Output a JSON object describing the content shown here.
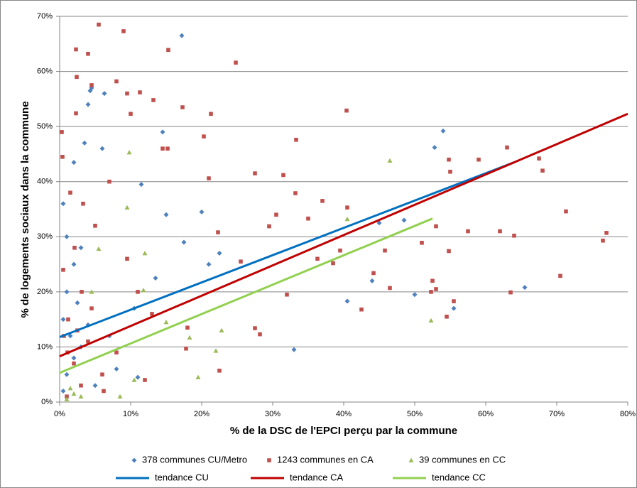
{
  "chart_data": {
    "type": "scatter",
    "x_label": "% de la DSC de l'EPCI perçu par la commune",
    "y_label": "% de logements sociaux dans la commune",
    "xlim": [
      0,
      80
    ],
    "ylim": [
      0,
      70
    ],
    "xticks": [
      {
        "value": 0,
        "label": "0%"
      },
      {
        "value": 10,
        "label": "10%"
      },
      {
        "value": 20,
        "label": "20%"
      },
      {
        "value": 30,
        "label": "30%"
      },
      {
        "value": 40,
        "label": "40%"
      },
      {
        "value": 50,
        "label": "50%"
      },
      {
        "value": 60,
        "label": "60%"
      },
      {
        "value": 70,
        "label": "70%"
      },
      {
        "value": 80,
        "label": "80%"
      }
    ],
    "yticks": [
      {
        "value": 0,
        "label": "0%"
      },
      {
        "value": 10,
        "label": "10%"
      },
      {
        "value": 20,
        "label": "20%"
      },
      {
        "value": 30,
        "label": "30%"
      },
      {
        "value": 40,
        "label": "40%"
      },
      {
        "value": 50,
        "label": "50%"
      },
      {
        "value": 60,
        "label": "60%"
      },
      {
        "value": 70,
        "label": "70%"
      }
    ],
    "grid": true,
    "legend": "bottom",
    "series": [
      {
        "name": "378 communes CU/Metro",
        "color": "#4f81bd",
        "marker": "diamond",
        "x": [
          17.2,
          4.5,
          4.3,
          6.3,
          4,
          14.5,
          54,
          52.8,
          6,
          3.5,
          2,
          11.5,
          20,
          15,
          0.5,
          45,
          48.5,
          22.5,
          17.5,
          1,
          3,
          2,
          21,
          13.5,
          44,
          40.5,
          50,
          65.5,
          55.5,
          33,
          10.5,
          1,
          0.5,
          1.5,
          3,
          2,
          1,
          5,
          8,
          0.5,
          11,
          4,
          7,
          2.5
        ],
        "values": [
          66.5,
          57,
          56.5,
          56,
          54,
          49,
          49.2,
          46.2,
          46,
          47,
          43.5,
          39.5,
          34.5,
          34,
          36,
          32.5,
          33,
          27,
          29,
          30,
          28,
          25,
          25,
          22.5,
          22,
          18.3,
          19.5,
          20.8,
          17,
          9.5,
          17,
          20,
          15,
          12,
          10,
          8,
          5,
          3,
          6,
          2,
          4.5,
          14,
          12,
          18
        ]
      },
      {
        "name": "1243 communes en CA",
        "color": "#c0504d",
        "marker": "square",
        "x": [
          5.5,
          9,
          2.3,
          4,
          15.3,
          24.8,
          2.4,
          8,
          4.5,
          11.3,
          9.5,
          13.2,
          17.3,
          40.4,
          21.3,
          2.3,
          10,
          0.3,
          20.3,
          33.3,
          14.5,
          15.2,
          59,
          63,
          67.5,
          68,
          55,
          54.8,
          27.5,
          31.5,
          21,
          37,
          40.5,
          33.2,
          71.3,
          29.5,
          30.5,
          35,
          53,
          57.5,
          62,
          64,
          76.5,
          77,
          51,
          45.8,
          54.8,
          22.3,
          25.5,
          39.5,
          36.3,
          38.5,
          44.2,
          52.5,
          53,
          52.3,
          63.5,
          70.5,
          46.5,
          32,
          42.5,
          55.5,
          54.5,
          18,
          27.5,
          28.2,
          22.5,
          17.8,
          12,
          6,
          3,
          1,
          2,
          4,
          1.2,
          3.1,
          0.5,
          2.1,
          5,
          1.5,
          3.3,
          7,
          0.4,
          9.5,
          11,
          13,
          8,
          6.2,
          1.1,
          2.5,
          4.5,
          0.6
        ],
        "values": [
          68.5,
          67.3,
          64,
          63.2,
          63.9,
          61.6,
          59,
          58.2,
          57.5,
          56.2,
          56,
          54.8,
          53.5,
          52.9,
          52.3,
          52.4,
          52.3,
          49,
          48.2,
          47.6,
          46,
          46,
          44,
          46.2,
          44.2,
          42,
          41.8,
          44,
          41.5,
          41.2,
          40.6,
          36.5,
          35.3,
          37.9,
          34.6,
          31.9,
          34,
          33.3,
          31.9,
          31,
          31,
          30.2,
          29.3,
          30.7,
          28.9,
          27.5,
          27.4,
          30.8,
          25.5,
          27.5,
          26,
          25.2,
          23.4,
          22,
          20.5,
          20,
          19.9,
          22.9,
          20.7,
          19.5,
          16.8,
          18.3,
          15.5,
          13.5,
          13.4,
          12.3,
          5.7,
          9.7,
          4,
          5,
          3,
          1,
          7,
          11,
          15,
          20,
          24,
          28,
          32,
          38,
          36,
          40,
          44.5,
          26,
          20,
          16,
          9,
          2,
          9,
          13,
          17,
          12
        ]
      },
      {
        "name": "39 communes en CC",
        "color": "#9bbb59",
        "marker": "triangle",
        "x": [
          9.8,
          46.5,
          40.5,
          9.5,
          5.5,
          12,
          11.8,
          4.5,
          15,
          18.3,
          22.8,
          22,
          19.5,
          52.3,
          10.5,
          8.5,
          1.5,
          1,
          3,
          2
        ],
        "values": [
          45.3,
          43.8,
          33.2,
          35.3,
          27.8,
          27,
          20.3,
          20,
          14.5,
          11.7,
          13,
          9.3,
          4.5,
          14.8,
          4,
          1,
          2.5,
          0.5,
          1,
          1.5
        ]
      },
      {
        "name": "tendance CU",
        "color": "#0070c0",
        "marker": "line",
        "x": [
          0,
          64
        ],
        "values": [
          11.8,
          43.5
        ]
      },
      {
        "name": "tendance CA",
        "color": "#c00000",
        "marker": "line",
        "x": [
          0,
          80
        ],
        "values": [
          8.3,
          52.3
        ]
      },
      {
        "name": "tendance CC",
        "color": "#92d050",
        "marker": "line",
        "x": [
          0,
          52.5
        ],
        "values": [
          5.3,
          33.3
        ]
      }
    ]
  }
}
